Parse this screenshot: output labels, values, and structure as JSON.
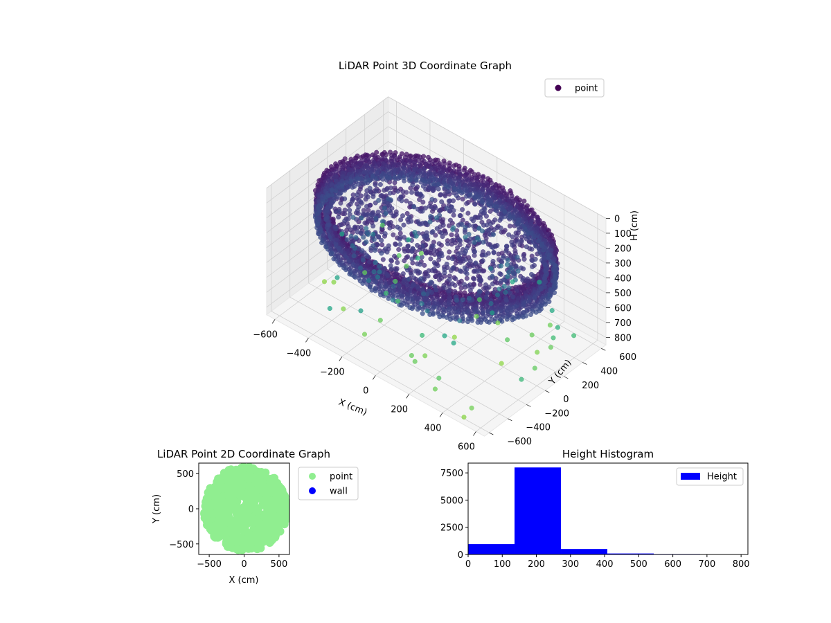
{
  "chart_data": [
    {
      "type": "scatter",
      "projection": "3d",
      "title": "LiDAR Point 3D Coordinate Graph",
      "xlabel": "X (cm)",
      "ylabel": "Y (cm)",
      "zlabel": "H (cm)",
      "xlim": [
        -650,
        650
      ],
      "ylim": [
        -650,
        650
      ],
      "zlim": [
        850,
        0
      ],
      "z_inverted": true,
      "xticks": [
        -600,
        -400,
        -200,
        0,
        200,
        400,
        600
      ],
      "yticks": [
        -600,
        -400,
        -200,
        0,
        200,
        400,
        600
      ],
      "zticks": [
        0,
        100,
        200,
        300,
        400,
        500,
        600,
        700,
        800
      ],
      "grid": true,
      "colormap": "viridis",
      "color_by": "height",
      "legend": {
        "position": "top-right",
        "entries": [
          {
            "label": "point",
            "color": "#440154"
          }
        ]
      },
      "series": [
        {
          "name": "point",
          "description_of_distribution": "dense rings of points with radius ~550-650 cm at heights ~150-330 cm plus a dense floor disk and scattered outliers",
          "rings": [
            {
              "radius": 620,
              "h_min": 150,
              "h_max": 320
            },
            {
              "radius": 570,
              "h_min": 160,
              "h_max": 300
            }
          ],
          "sample_outliers": [
            {
              "x": -600,
              "y": 500,
              "h": 760
            },
            {
              "x": 100,
              "y": -300,
              "h": 820
            },
            {
              "x": 300,
              "y": -550,
              "h": 800
            },
            {
              "x": 560,
              "y": 50,
              "h": 780
            },
            {
              "x": 620,
              "y": -200,
              "h": 700
            },
            {
              "x": 500,
              "y": -600,
              "h": 840
            },
            {
              "x": -300,
              "y": 100,
              "h": 760
            },
            {
              "x": 200,
              "y": 300,
              "h": 820
            }
          ]
        }
      ]
    },
    {
      "type": "scatter",
      "title": "LiDAR Point 2D Coordinate Graph",
      "xlabel": "X (cm)",
      "ylabel": "Y (cm)",
      "xlim": [
        -650,
        650
      ],
      "ylim": [
        -650,
        650
      ],
      "xticks": [
        -500,
        0,
        500
      ],
      "yticks": [
        -500,
        0,
        500
      ],
      "grid": false,
      "legend": {
        "position": "outside-right",
        "entries": [
          {
            "label": "point",
            "color": "#90ee90"
          },
          {
            "label": "wall",
            "color": "#0000ff"
          }
        ]
      },
      "series": [
        {
          "name": "point",
          "color": "#90ee90",
          "region": "filled disk centered near (0,0), radius ~600 cm"
        },
        {
          "name": "wall",
          "color": "#0000ff",
          "values": []
        }
      ]
    },
    {
      "type": "bar",
      "subtype": "histogram",
      "title": "Height Histogram",
      "xlabel": "",
      "ylabel": "",
      "xlim": [
        0,
        820
      ],
      "ylim": [
        0,
        8400
      ],
      "xticks": [
        0,
        100,
        200,
        300,
        400,
        500,
        600,
        700,
        800
      ],
      "yticks": [
        0,
        2500,
        5000,
        7500
      ],
      "bin_edges": [
        0,
        136,
        272,
        408,
        544,
        680,
        816
      ],
      "values": [
        950,
        8000,
        500,
        90,
        40,
        10
      ],
      "color": "#0000ff",
      "legend": {
        "position": "top-right",
        "entries": [
          {
            "label": "Height",
            "color": "#0000ff"
          }
        ]
      },
      "series": [
        {
          "name": "Height",
          "values": [
            950,
            8000,
            500,
            90,
            40,
            10
          ]
        }
      ]
    }
  ]
}
